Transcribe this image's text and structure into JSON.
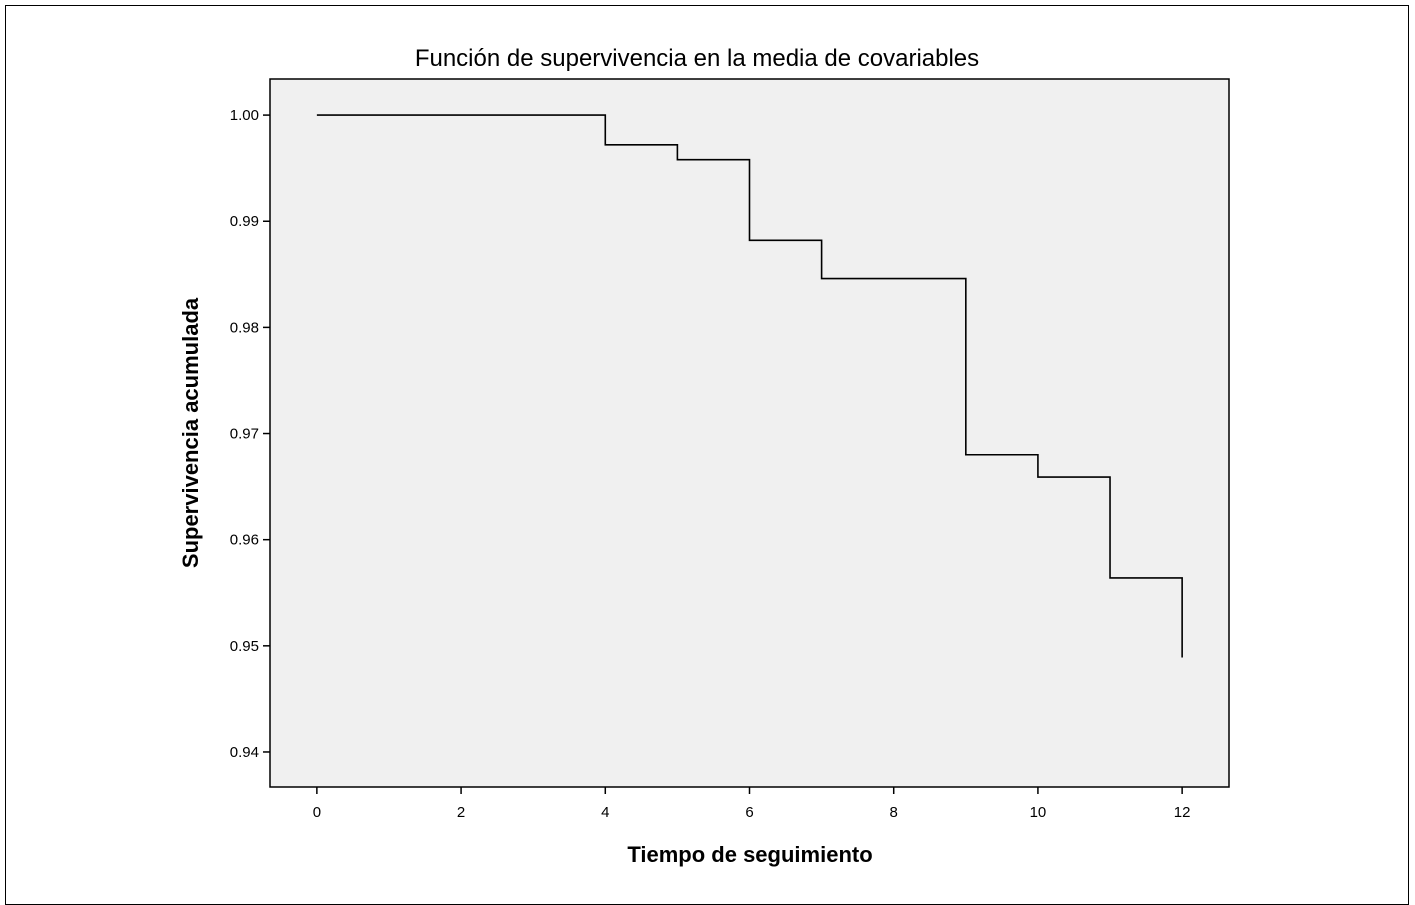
{
  "chart_data": {
    "type": "line",
    "step": true,
    "title": "Función de supervivencia en la media de covariables",
    "xlabel": "Tiempo de seguimiento",
    "ylabel": "Supervivencia acumulada",
    "xlim": [
      -0.65,
      12.65
    ],
    "ylim": [
      0.9367,
      1.0034
    ],
    "xticks": [
      0,
      2,
      4,
      6,
      8,
      10,
      12
    ],
    "xtick_labels": [
      "0",
      "2",
      "4",
      "6",
      "8",
      "10",
      "12"
    ],
    "yticks": [
      0.94,
      0.95,
      0.96,
      0.97,
      0.98,
      0.99,
      1.0
    ],
    "ytick_labels": [
      "0.94",
      "0.95",
      "0.96",
      "0.97",
      "0.98",
      "0.99",
      "1.00"
    ],
    "grid": false,
    "plot_background": "#f0f0f0",
    "line_color": "#000000",
    "series": [
      {
        "x": [
          0,
          4,
          5,
          6,
          7,
          9,
          10,
          11,
          12
        ],
        "y": [
          1.0,
          0.9972,
          0.9958,
          0.9882,
          0.9846,
          0.968,
          0.9659,
          0.9564,
          0.9489
        ]
      }
    ]
  }
}
